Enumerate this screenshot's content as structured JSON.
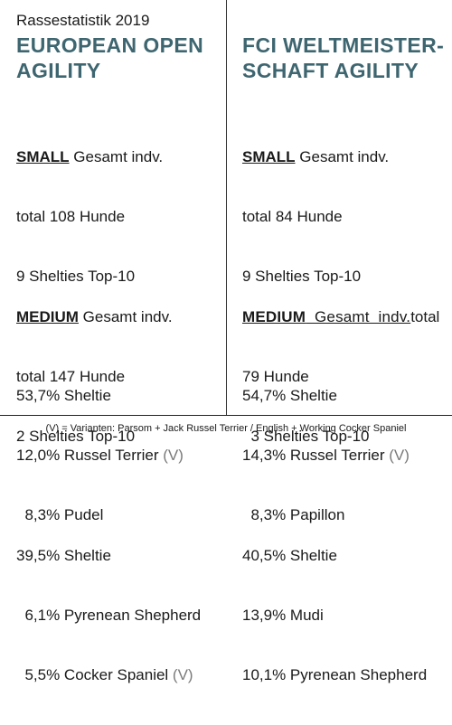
{
  "subtitle": "Rassestatistik 2019",
  "left": {
    "title_line1": "EUROPEAN OPEN",
    "title_line2": "AGILITY",
    "small": {
      "label": "SMALL",
      "label_rest": " Gesamt indv.",
      "total": "total 108 Hunde",
      "top10": "9 Shelties Top-10",
      "stats": [
        {
          "text": "53,7% Sheltie",
          "note": ""
        },
        {
          "text": "12,0% Russel Terrier ",
          "note": "(V)"
        },
        {
          "text": "  8,3% Pudel",
          "note": ""
        }
      ]
    },
    "medium": {
      "label": "MEDIUM",
      "label_rest": " Gesamt indv.",
      "total": "total 147 Hunde",
      "top10": "2 Shelties Top-10",
      "stats": [
        {
          "text": "39,5% Sheltie",
          "note": ""
        },
        {
          "text": "  6,1% Pyrenean Shepherd",
          "note": ""
        },
        {
          "text": "  5,5% Cocker Spaniel ",
          "note": "(V)"
        }
      ]
    }
  },
  "right": {
    "title_line1": "FCI WELTMEISTER-",
    "title_line2": "SCHAFT AGILITY",
    "small": {
      "label": "SMALL",
      "label_rest": " Gesamt indv.",
      "total": "total 84 Hunde",
      "top10": "9 Shelties Top-10",
      "stats": [
        {
          "text": "54,7% Sheltie",
          "note": ""
        },
        {
          "text": "14,3% Russel Terrier ",
          "note": "(V)"
        },
        {
          "text": "  8,3% Papillon",
          "note": ""
        }
      ]
    },
    "medium": {
      "label": "MEDIUM",
      "label_rest": "  Gesamt  indv.",
      "label_tail": "total",
      "total": "79 Hunde",
      "top10": "  3 Shelties Top-10",
      "stats": [
        {
          "text": "40,5% Sheltie",
          "note": ""
        },
        {
          "text": "13,9% Mudi",
          "note": ""
        },
        {
          "text": "10,1% Pyrenean Shepherd",
          "note": ""
        }
      ]
    }
  },
  "footer": "(V) = Varianten: Parsom + Jack Russel Terrier / English + Working Cocker Spaniel",
  "colors": {
    "heading": "#3e6670",
    "muted": "#7a7a7a"
  }
}
